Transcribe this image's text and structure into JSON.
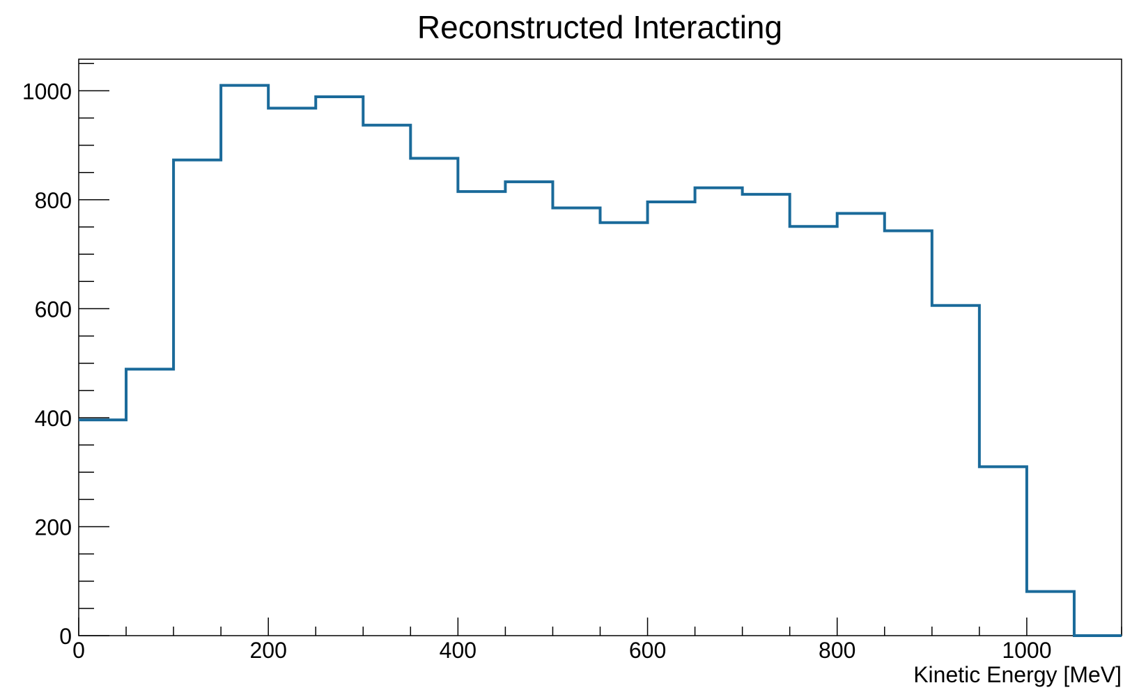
{
  "chart_data": {
    "type": "bar",
    "title": "Reconstructed Interacting",
    "xlabel": "Kinetic Energy [MeV]",
    "ylabel": "",
    "xlim": [
      0,
      1100
    ],
    "ylim": [
      0,
      1058
    ],
    "bin_edges": [
      0,
      50,
      100,
      150,
      200,
      250,
      300,
      350,
      400,
      450,
      500,
      550,
      600,
      650,
      700,
      750,
      800,
      850,
      900,
      950,
      1000,
      1050,
      1100
    ],
    "values": [
      396,
      489,
      873,
      1010,
      968,
      989,
      937,
      876,
      815,
      833,
      785,
      758,
      796,
      822,
      810,
      751,
      775,
      743,
      606,
      310,
      81,
      0
    ],
    "x_tick_labels": [
      "0",
      "200",
      "400",
      "600",
      "800",
      "1000"
    ],
    "y_tick_labels": [
      "0",
      "200",
      "400",
      "600",
      "800",
      "1000"
    ],
    "grid": false,
    "legend": "none",
    "line_color": "#1a6a9a"
  }
}
